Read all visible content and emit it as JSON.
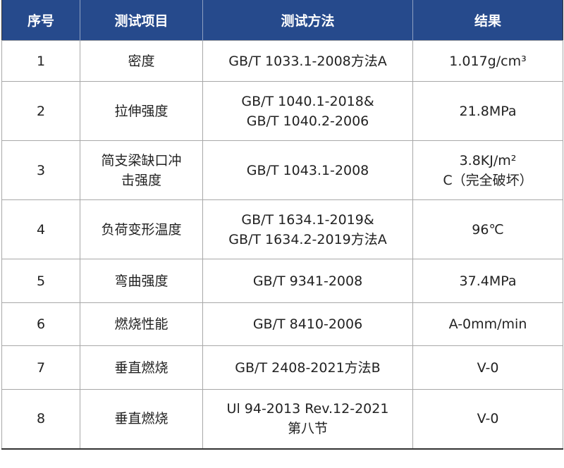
{
  "headers": [
    "序号",
    "测试项目",
    "测试方法",
    "结果"
  ],
  "rows": [
    {
      "no": "1",
      "item": [
        "密度"
      ],
      "method": [
        "GB/T 1033.1-2008方法A"
      ],
      "result": [
        "1.017g/cm³"
      ]
    },
    {
      "no": "2",
      "item": [
        "拉伸强度"
      ],
      "method": [
        "GB/T 1040.1-2018&",
        "GB/T 1040.2-2006"
      ],
      "result": [
        "21.8MPa"
      ]
    },
    {
      "no": "3",
      "item": [
        "简支梁缺口冲",
        "击强度"
      ],
      "method": [
        "GB/T 1043.1-2008"
      ],
      "result": [
        "3.8KJ/m²",
        "C（完全破坏）"
      ]
    },
    {
      "no": "4",
      "item": [
        "负荷变形温度"
      ],
      "method": [
        "GB/T 1634.1-2019&",
        "GB/T 1634.2-2019方法A"
      ],
      "result": [
        "96℃"
      ]
    },
    {
      "no": "5",
      "item": [
        "弯曲强度"
      ],
      "method": [
        "GB/T 9341-2008"
      ],
      "result": [
        "37.4MPa"
      ]
    },
    {
      "no": "6",
      "item": [
        "燃烧性能"
      ],
      "method": [
        "GB/T 8410-2006"
      ],
      "result": [
        "A-0mm/min"
      ]
    },
    {
      "no": "7",
      "item": [
        "垂直燃烧"
      ],
      "method": [
        "GB/T 2408-2021方法B"
      ],
      "result": [
        "V-0"
      ]
    },
    {
      "no": "8",
      "item": [
        "垂直燃烧"
      ],
      "method": [
        "Ul 94-2013 Rev.12-2021",
        "第八节"
      ],
      "result": [
        "V-0"
      ]
    }
  ],
  "colors": {
    "header_bg": "#264a8c",
    "header_text": "#ffffff",
    "grid": "#a8a8a8"
  }
}
